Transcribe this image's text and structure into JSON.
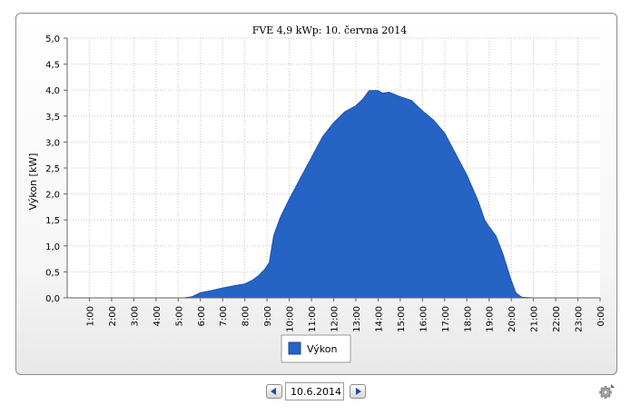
{
  "toolbar": {
    "date_value": "10.6.2014",
    "prev_icon": "chevron-left-icon",
    "next_icon": "chevron-right-icon",
    "settings_icon": "gear-icon"
  },
  "chart_data": {
    "type": "area",
    "title": "FVE 4,9 kWp: 10. června 2014",
    "xlabel": "",
    "ylabel": "Výkon [kW]",
    "ylim": [
      0,
      5
    ],
    "yticks": [
      "0,0",
      "0,5",
      "1,0",
      "1,5",
      "2,0",
      "2,5",
      "3,0",
      "3,5",
      "4,0",
      "4,5",
      "5,0"
    ],
    "xlim": [
      0,
      24
    ],
    "xticks": [
      "1:00",
      "2:00",
      "3:00",
      "4:00",
      "5:00",
      "6:00",
      "7:00",
      "8:00",
      "9:00",
      "10:00",
      "11:00",
      "12:00",
      "13:00",
      "14:00",
      "15:00",
      "16:00",
      "17:00",
      "18:00",
      "19:00",
      "20:00",
      "21:00",
      "22:00",
      "23:00",
      "0:00"
    ],
    "grid": true,
    "legend_position": "bottom",
    "color": "#2563c4",
    "series": [
      {
        "name": "Výkon",
        "x": [
          0,
          5.25,
          5.6,
          6,
          6.5,
          7,
          7.5,
          8,
          8.3,
          8.6,
          8.9,
          9.1,
          9.3,
          9.6,
          10,
          10.5,
          11,
          11.5,
          12,
          12.5,
          13,
          13.3,
          13.6,
          14,
          14.2,
          14.5,
          15,
          15.5,
          16,
          16.5,
          17,
          17.5,
          18,
          18.5,
          18.8,
          19,
          19.3,
          19.6,
          19.8,
          20,
          20.2,
          20.4,
          20.5,
          21,
          22,
          23,
          24
        ],
        "values": [
          0,
          0,
          0.02,
          0.1,
          0.14,
          0.19,
          0.23,
          0.27,
          0.33,
          0.42,
          0.55,
          0.68,
          1.2,
          1.55,
          1.9,
          2.3,
          2.7,
          3.1,
          3.37,
          3.58,
          3.7,
          3.82,
          3.99,
          3.99,
          3.94,
          3.96,
          3.87,
          3.8,
          3.6,
          3.42,
          3.17,
          2.77,
          2.36,
          1.87,
          1.5,
          1.37,
          1.2,
          0.87,
          0.6,
          0.33,
          0.1,
          0.03,
          0.01,
          0,
          0,
          0,
          0
        ]
      }
    ]
  }
}
